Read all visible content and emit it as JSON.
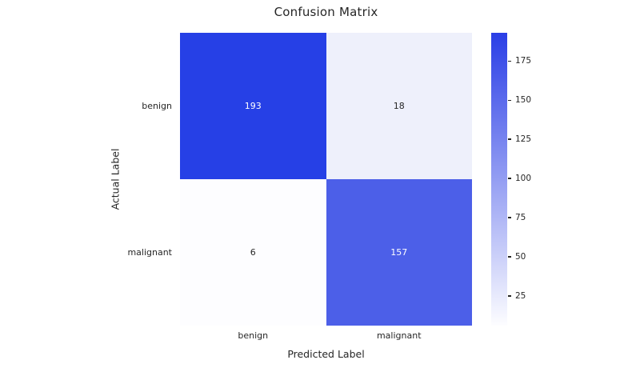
{
  "chart_data": {
    "type": "heatmap",
    "title": "Confusion Matrix",
    "xlabel": "Predicted Label",
    "ylabel": "Actual Label",
    "x_categories": [
      "benign",
      "malignant"
    ],
    "y_categories": [
      "benign",
      "malignant"
    ],
    "values": [
      [
        193,
        18
      ],
      [
        6,
        157
      ]
    ],
    "vmin": 6,
    "vmax": 193,
    "cell_colors": [
      [
        "#2640e6",
        "#eef0fb"
      ],
      [
        "#fdfdff",
        "#4c5fe8"
      ]
    ],
    "cell_text_colors": [
      [
        "#ffffff",
        "#262626"
      ],
      [
        "#262626",
        "#ffffff"
      ]
    ],
    "colormap": "white-to-blue",
    "grid": false,
    "legend_position": "right-colorbar",
    "colorbar": {
      "ticks": [
        25,
        50,
        75,
        100,
        125,
        150,
        175
      ],
      "top_color": "#2a3ee6",
      "bottom_color": "#fdfdff"
    }
  }
}
